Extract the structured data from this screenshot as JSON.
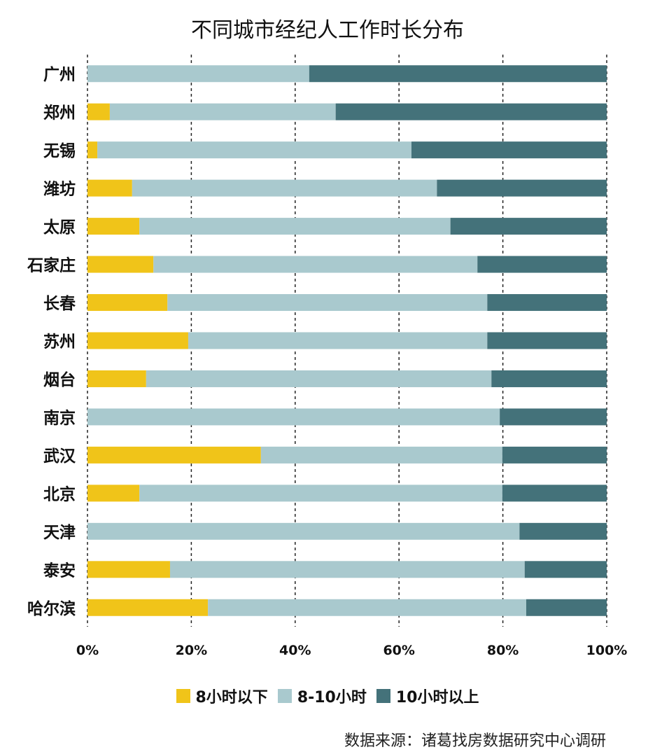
{
  "chart_data": {
    "type": "bar",
    "orientation": "horizontal",
    "stacked": true,
    "title": "不同城市经纪人工作时长分布",
    "categories": [
      "广州",
      "郑州",
      "无锡",
      "潍坊",
      "太原",
      "石家庄",
      "长春",
      "苏州",
      "烟台",
      "南京",
      "武汉",
      "北京",
      "天津",
      "泰安",
      "哈尔滨"
    ],
    "series": [
      {
        "name": "8小时以下",
        "color": "#F0C419",
        "values": [
          0,
          4.3,
          1.9,
          8.6,
          10.0,
          12.7,
          15.4,
          19.4,
          11.3,
          0,
          33.4,
          10.0,
          0,
          15.9,
          23.2
        ]
      },
      {
        "name": "8-10小时",
        "color": "#A9C9CE",
        "values": [
          42.7,
          43.5,
          60.5,
          58.7,
          59.9,
          62.4,
          61.6,
          57.6,
          66.5,
          79.4,
          46.5,
          69.9,
          83.2,
          68.3,
          61.3
        ]
      },
      {
        "name": "10小时以上",
        "color": "#44727A",
        "values": [
          57.3,
          52.2,
          37.6,
          32.7,
          30.1,
          24.9,
          23.0,
          23.0,
          22.2,
          20.6,
          20.1,
          20.1,
          16.8,
          15.8,
          15.5
        ]
      }
    ],
    "xlim": [
      0,
      100
    ],
    "xticks": [
      "0%",
      "20%",
      "40%",
      "60%",
      "80%",
      "100%"
    ],
    "grid": "vertical dashed",
    "legend": "bottom"
  },
  "source": "数据来源：诸葛找房数据研究中心调研"
}
